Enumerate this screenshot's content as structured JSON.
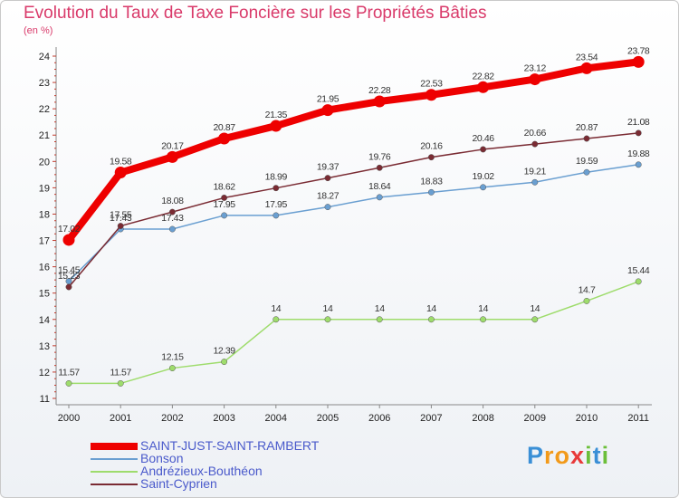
{
  "header": {
    "title": "Evolution du Taux de Taxe Foncière sur les Propriétés Bâties",
    "unit": "(en %)"
  },
  "chart_data": {
    "type": "line",
    "title": "Evolution du Taux de Taxe Foncière sur les Propriétés Bâties",
    "ylabel": "(en %)",
    "xlabel": "",
    "categories": [
      "2000",
      "2001",
      "2002",
      "2003",
      "2004",
      "2005",
      "2006",
      "2007",
      "2008",
      "2009",
      "2010",
      "2011"
    ],
    "ylim": [
      11,
      24
    ],
    "yticks": [
      "11",
      "12",
      "13",
      "14",
      "15",
      "16",
      "17",
      "18",
      "19",
      "20",
      "21",
      "22",
      "23",
      "24"
    ],
    "grid": false,
    "legend_position": "bottom-left",
    "series": [
      {
        "name": "SAINT-JUST-SAINT-RAMBERT",
        "color": "#ee0000",
        "values": [
          17.02,
          19.58,
          20.17,
          20.87,
          21.35,
          21.95,
          22.28,
          22.53,
          22.82,
          23.12,
          23.54,
          23.78
        ],
        "labels": [
          "17.02",
          "19.58",
          "20.17",
          "20.87",
          "21.35",
          "21.95",
          "22.28",
          "22.53",
          "22.82",
          "23.12",
          "23.54",
          "23.78"
        ]
      },
      {
        "name": "Bonson",
        "color": "#6a9fd1",
        "values": [
          15.45,
          17.43,
          17.43,
          17.95,
          17.95,
          18.27,
          18.64,
          18.83,
          19.02,
          19.21,
          19.59,
          19.88
        ],
        "labels": [
          "15.45",
          "17.43",
          "17.43",
          "17.95",
          "17.95",
          "18.27",
          "18.64",
          "18.83",
          "19.02",
          "19.21",
          "19.59",
          "19.88"
        ]
      },
      {
        "name": "Andrézieux-Bouthéon",
        "color": "#9edc6c",
        "values": [
          11.57,
          11.57,
          12.15,
          12.39,
          14,
          14,
          14,
          14,
          14,
          14,
          14.7,
          15.44
        ],
        "labels": [
          "11.57",
          "11.57",
          "12.15",
          "12.39",
          "14",
          "14",
          "14",
          "14",
          "14",
          "14",
          "14.7",
          "15.44"
        ]
      },
      {
        "name": "Saint-Cyprien",
        "color": "#7a2b33",
        "values": [
          15.23,
          17.55,
          18.08,
          18.62,
          18.99,
          19.37,
          19.76,
          20.16,
          20.46,
          20.66,
          20.87,
          21.08
        ],
        "labels": [
          "15.23",
          "17.55",
          "18.08",
          "18.62",
          "18.99",
          "19.37",
          "19.76",
          "20.16",
          "20.46",
          "20.66",
          "20.87",
          "21.08"
        ]
      }
    ]
  },
  "logo": {
    "letters": [
      "P",
      "r",
      "o",
      "x",
      "i",
      "t",
      "i"
    ],
    "colors": [
      "#3a8fd6",
      "#f29a1a",
      "#f29a1a",
      "#e83a3a",
      "#6cbf3a",
      "#3a8fd6",
      "#6cbf3a"
    ]
  }
}
